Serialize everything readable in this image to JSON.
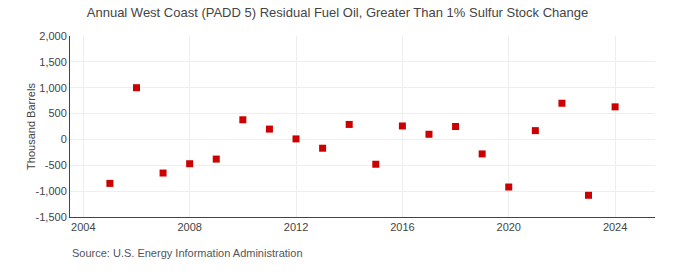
{
  "chart_data": {
    "type": "scatter",
    "title": "Annual West Coast (PADD 5) Residual Fuel Oil, Greater Than 1% Sulfur Stock Change",
    "ylabel": "Thousand Barrels",
    "annotations": [
      "Source: U.S. Energy Information Administration"
    ],
    "x": [
      2005,
      2006,
      2007,
      2008,
      2009,
      2010,
      2011,
      2012,
      2013,
      2014,
      2015,
      2016,
      2017,
      2018,
      2019,
      2020,
      2021,
      2022,
      2023,
      2024
    ],
    "values": [
      -850,
      1000,
      -650,
      -470,
      -380,
      380,
      200,
      10,
      -170,
      290,
      -480,
      260,
      100,
      250,
      -280,
      -920,
      170,
      700,
      -1080,
      630
    ],
    "color": "#cc0000",
    "marker": "square",
    "xlim": [
      2003.5,
      2025.5
    ],
    "xticks": [
      2004,
      2008,
      2012,
      2016,
      2020,
      2024
    ],
    "ylim": [
      -1500,
      2000
    ],
    "yticks": [
      {
        "value": -1500,
        "label": "-1,500"
      },
      {
        "value": -1000,
        "label": "-1,000"
      },
      -500,
      0,
      500,
      {
        "value": 1000,
        "label": "1,000"
      },
      {
        "value": 1500,
        "label": "1,500"
      },
      {
        "value": 2000,
        "label": "2,000"
      }
    ],
    "grid": true
  }
}
